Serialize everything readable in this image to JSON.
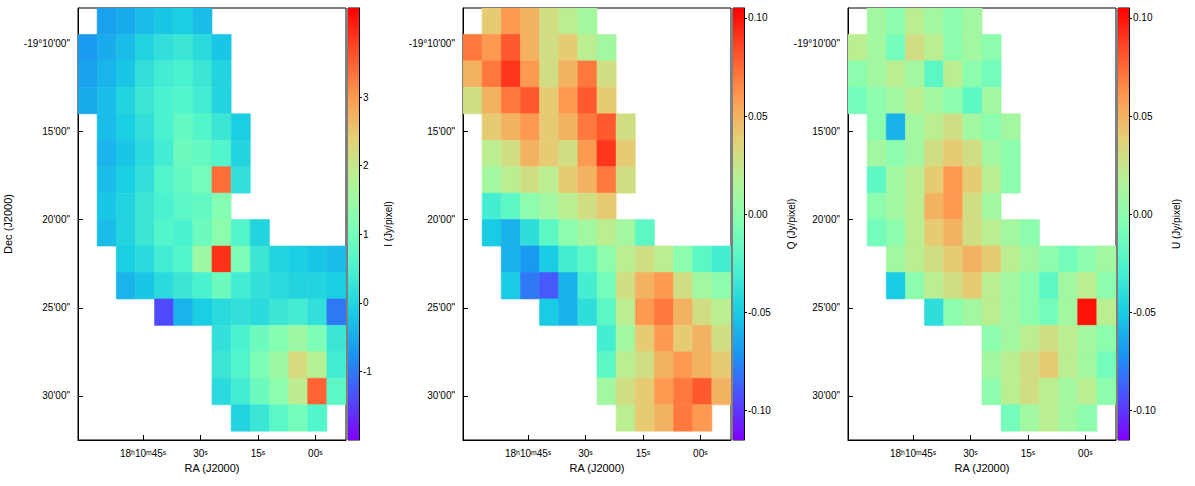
{
  "chart_data": [
    {
      "type": "heatmap",
      "x_label": "RA (J2000)",
      "y_label": "Dec (J2000)",
      "x": [
        59.5,
        54.5,
        49.5,
        44.5,
        39.5,
        34.5,
        29.5,
        24.5,
        19.5,
        14.5,
        9.5,
        4.5,
        -0.5,
        -5.5
      ],
      "y": [
        -8.75,
        -10.25,
        -11.75,
        -13.25,
        -14.75,
        -16.25,
        -17.75,
        -19.25,
        -20.75,
        -22.25,
        -23.75,
        -25.25,
        -26.75,
        -28.25,
        -29.75,
        -31.25
      ],
      "cells": [
        [
          null,
          -0.6,
          -0.5,
          -0.3,
          -0.2,
          -0.1,
          -0.3,
          null,
          null,
          null,
          null,
          null,
          null,
          null
        ],
        [
          -0.7,
          -0.5,
          -0.3,
          0,
          0.2,
          0.3,
          0.1,
          -0.2,
          null,
          null,
          null,
          null,
          null,
          null
        ],
        [
          -0.6,
          -0.4,
          -0.2,
          0.2,
          0.4,
          0.5,
          0.3,
          0,
          null,
          null,
          null,
          null,
          null,
          null
        ],
        [
          -0.5,
          -0.3,
          0,
          0.3,
          0.5,
          0.6,
          0.4,
          0,
          null,
          null,
          null,
          null,
          null,
          null
        ],
        [
          null,
          -0.3,
          -0.1,
          0.2,
          0.5,
          0.8,
          0.6,
          0.3,
          -0.1,
          null,
          null,
          null,
          null,
          null
        ],
        [
          null,
          -0.4,
          -0.2,
          0.1,
          0.4,
          0.9,
          0.8,
          0.6,
          0,
          null,
          null,
          null,
          null,
          null
        ],
        [
          null,
          -0.3,
          -0.1,
          0.2,
          0.6,
          0.8,
          1.0,
          3.4,
          0.2,
          null,
          null,
          null,
          null,
          null
        ],
        [
          null,
          -0.2,
          0,
          0.3,
          0.5,
          0.7,
          0.8,
          1.2,
          null,
          null,
          null,
          null,
          null,
          null
        ],
        [
          null,
          -0.3,
          0,
          0.3,
          0.6,
          0.5,
          0.9,
          1.3,
          0.6,
          0,
          null,
          null,
          null,
          null
        ],
        [
          null,
          null,
          -0.1,
          0.1,
          0.4,
          0.6,
          1.5,
          3.9,
          1.1,
          0.3,
          0,
          -0.1,
          -0.2,
          -0.3
        ],
        [
          null,
          null,
          -0.4,
          -0.2,
          0.1,
          0.3,
          0.5,
          0.9,
          0.4,
          0.2,
          0.1,
          0,
          0,
          -0.1
        ],
        [
          null,
          null,
          null,
          null,
          -1.4,
          -0.4,
          -0.1,
          0.1,
          0.2,
          0.1,
          0.3,
          0.4,
          0.2,
          -1.0
        ],
        [
          null,
          null,
          null,
          null,
          null,
          null,
          null,
          0.2,
          0.5,
          0.9,
          1.2,
          1.5,
          1.1,
          0.3
        ],
        [
          null,
          null,
          null,
          null,
          null,
          null,
          null,
          0.3,
          0.6,
          1.1,
          1.5,
          2.2,
          1.8,
          0.4
        ],
        [
          null,
          null,
          null,
          null,
          null,
          null,
          null,
          0.1,
          0.4,
          0.9,
          1.3,
          1.9,
          3.5,
          0.7
        ],
        [
          null,
          null,
          null,
          null,
          null,
          null,
          null,
          null,
          0,
          0.3,
          0.7,
          1.0,
          0.6,
          null
        ]
      ],
      "xlim": [
        -8,
        62
      ],
      "ylim": [
        -32.5,
        -8
      ],
      "xticks": [
        {
          "value": 45,
          "label": "18ʰ10ᵐ45ˢ"
        },
        {
          "value": 30,
          "label": "30ˢ"
        },
        {
          "value": 15,
          "label": "15ˢ"
        },
        {
          "value": 0,
          "label": "00ˢ"
        }
      ],
      "yticks": [
        {
          "value": -10,
          "label": "-19°10'00\""
        },
        {
          "value": -15,
          "label": "15'00\""
        },
        {
          "value": -20,
          "label": "20'00\""
        },
        {
          "value": -25,
          "label": "25'00\""
        },
        {
          "value": -30,
          "label": "30'00\""
        }
      ],
      "colorbar": {
        "label": "I (Jy/pixel)",
        "range": [
          -2.0,
          4.3
        ],
        "ticks": [
          -1,
          0,
          1,
          2,
          3
        ]
      }
    },
    {
      "type": "heatmap",
      "x_label": "RA (J2000)",
      "x": [
        59.5,
        54.5,
        49.5,
        44.5,
        39.5,
        34.5,
        29.5,
        24.5,
        19.5,
        14.5,
        9.5,
        4.5,
        -0.5,
        -5.5
      ],
      "y": [
        -8.75,
        -10.25,
        -11.75,
        -13.25,
        -14.75,
        -16.25,
        -17.75,
        -19.25,
        -20.75,
        -22.25,
        -23.75,
        -25.25,
        -26.75,
        -28.25,
        -29.75,
        -31.25
      ],
      "cells": [
        [
          null,
          0.04,
          0.06,
          0.05,
          0.03,
          0.02,
          0.01,
          null,
          null,
          null,
          null,
          null,
          null,
          null
        ],
        [
          0.07,
          0.06,
          0.08,
          0.05,
          0.03,
          0.04,
          0.02,
          0.01,
          null,
          null,
          null,
          null,
          null,
          null
        ],
        [
          0.05,
          0.07,
          0.09,
          0.06,
          0.03,
          0.05,
          0.07,
          0.03,
          null,
          null,
          null,
          null,
          null,
          null
        ],
        [
          0.03,
          0.05,
          0.07,
          0.08,
          0.04,
          0.06,
          0.08,
          0.04,
          null,
          null,
          null,
          null,
          null,
          null
        ],
        [
          null,
          0.04,
          0.05,
          0.06,
          0.04,
          0.05,
          0.07,
          0.08,
          0.03,
          null,
          null,
          null,
          null,
          null
        ],
        [
          null,
          0.02,
          0.03,
          0.05,
          0.04,
          0.03,
          0.06,
          0.09,
          0.04,
          null,
          null,
          null,
          null,
          null
        ],
        [
          null,
          0.01,
          0.02,
          0.03,
          0.02,
          0.04,
          0.05,
          0.07,
          0.03,
          null,
          null,
          null,
          null,
          null
        ],
        [
          null,
          -0.03,
          -0.02,
          0,
          0.01,
          0.02,
          0.03,
          0.04,
          null,
          null,
          null,
          null,
          null,
          null
        ],
        [
          null,
          -0.05,
          -0.06,
          -0.04,
          -0.02,
          0,
          0.01,
          0.02,
          0.01,
          -0.02,
          null,
          null,
          null,
          null
        ],
        [
          null,
          null,
          -0.06,
          -0.07,
          -0.05,
          -0.03,
          -0.02,
          0,
          0.02,
          0.03,
          0.02,
          0,
          -0.02,
          -0.03
        ],
        [
          null,
          null,
          -0.05,
          -0.08,
          -0.09,
          -0.06,
          -0.03,
          -0.01,
          0.03,
          0.05,
          0.06,
          0.03,
          0.01,
          0
        ],
        [
          null,
          null,
          null,
          null,
          -0.05,
          -0.06,
          -0.04,
          -0.02,
          0.02,
          0.06,
          0.07,
          0.05,
          0.03,
          0.02
        ],
        [
          null,
          null,
          null,
          null,
          null,
          null,
          null,
          -0.03,
          0.01,
          0.04,
          0.06,
          0.04,
          0.05,
          0.03
        ],
        [
          null,
          null,
          null,
          null,
          null,
          null,
          null,
          -0.02,
          0.02,
          0.03,
          0.05,
          0.06,
          0.05,
          0.04
        ],
        [
          null,
          null,
          null,
          null,
          null,
          null,
          null,
          0.01,
          0.03,
          0.04,
          0.06,
          0.07,
          0.08,
          0.05
        ],
        [
          null,
          null,
          null,
          null,
          null,
          null,
          null,
          null,
          0.02,
          0.04,
          0.05,
          0.07,
          0.06,
          null
        ]
      ],
      "xlim": [
        -8,
        62
      ],
      "ylim": [
        -32.5,
        -8
      ],
      "xticks": [
        {
          "value": 45,
          "label": "18ʰ10ᵐ45ˢ"
        },
        {
          "value": 30,
          "label": "30ˢ"
        },
        {
          "value": 15,
          "label": "15ˢ"
        },
        {
          "value": 0,
          "label": "00ˢ"
        }
      ],
      "yticks": [
        {
          "value": -10,
          "label": "-19°10'00\""
        },
        {
          "value": -15,
          "label": "15'00\""
        },
        {
          "value": -20,
          "label": "20'00\""
        },
        {
          "value": -25,
          "label": "25'00\""
        },
        {
          "value": -30,
          "label": "30'00\""
        }
      ],
      "colorbar": {
        "label": "Q (Jy/pixel)",
        "range": [
          -0.115,
          0.105
        ],
        "ticks": [
          {
            "value": -0.1,
            "label": "-0.10"
          },
          {
            "value": -0.05,
            "label": "-0.05"
          },
          {
            "value": 0,
            "label": "0.00"
          },
          {
            "value": 0.05,
            "label": "0.05"
          },
          {
            "value": 0.1,
            "label": "0.10"
          }
        ]
      }
    },
    {
      "type": "heatmap",
      "x_label": "RA (J2000)",
      "x": [
        59.5,
        54.5,
        49.5,
        44.5,
        39.5,
        34.5,
        29.5,
        24.5,
        19.5,
        14.5,
        9.5,
        4.5,
        -0.5,
        -5.5
      ],
      "y": [
        -8.75,
        -10.25,
        -11.75,
        -13.25,
        -14.75,
        -16.25,
        -17.75,
        -19.25,
        -20.75,
        -22.25,
        -23.75,
        -25.25,
        -26.75,
        -28.25,
        -29.75,
        -31.25
      ],
      "cells": [
        [
          null,
          0.01,
          0,
          0.02,
          0.01,
          0,
          0.01,
          null,
          null,
          null,
          null,
          null,
          null,
          null
        ],
        [
          0.02,
          0.01,
          -0.01,
          0.03,
          0.02,
          0,
          0.01,
          0,
          null,
          null,
          null,
          null,
          null,
          null
        ],
        [
          0,
          0.01,
          0.02,
          0.01,
          -0.02,
          0.02,
          0,
          -0.01,
          null,
          null,
          null,
          null,
          null,
          null
        ],
        [
          -0.01,
          0,
          0.01,
          0.02,
          0.01,
          0,
          -0.02,
          0.01,
          null,
          null,
          null,
          null,
          null,
          null
        ],
        [
          null,
          0,
          -0.06,
          0.01,
          0.02,
          0.03,
          0.01,
          0,
          0.01,
          null,
          null,
          null,
          null,
          null
        ],
        [
          null,
          0.01,
          0,
          0.01,
          0.03,
          0.04,
          0.03,
          0.01,
          0,
          null,
          null,
          null,
          null,
          null
        ],
        [
          null,
          -0.02,
          0.01,
          0.02,
          0.04,
          0.06,
          0.04,
          0.02,
          0,
          null,
          null,
          null,
          null,
          null
        ],
        [
          null,
          0,
          0.01,
          0.02,
          0.05,
          0.06,
          0.03,
          0.01,
          null,
          null,
          null,
          null,
          null,
          null
        ],
        [
          null,
          -0.01,
          0,
          0.02,
          0.04,
          0.05,
          0.03,
          0.02,
          0.01,
          0,
          null,
          null,
          null,
          null
        ],
        [
          null,
          null,
          0.01,
          0.02,
          0.03,
          0.04,
          0.05,
          0.04,
          0.02,
          0.01,
          0,
          -0.01,
          0,
          0.01
        ],
        [
          null,
          null,
          -0.05,
          0,
          0.02,
          0.03,
          0.04,
          0.02,
          0.01,
          0,
          -0.02,
          0.01,
          0.02,
          0
        ],
        [
          null,
          null,
          null,
          null,
          -0.04,
          0,
          0.01,
          0.02,
          0.01,
          0,
          -0.01,
          0.01,
          0.1,
          0.02
        ],
        [
          null,
          null,
          null,
          null,
          null,
          null,
          null,
          0,
          0.01,
          0.02,
          0.03,
          0.02,
          0.01,
          0
        ],
        [
          null,
          null,
          null,
          null,
          null,
          null,
          null,
          0.01,
          0.02,
          0.03,
          0.04,
          0.02,
          0.01,
          -0.01
        ],
        [
          null,
          null,
          null,
          null,
          null,
          null,
          null,
          0,
          0.02,
          0.03,
          0.02,
          0.01,
          0.02,
          0
        ],
        [
          null,
          null,
          null,
          null,
          null,
          null,
          null,
          null,
          -0.01,
          0.01,
          0.02,
          0.01,
          0,
          null
        ]
      ],
      "xlim": [
        -8,
        62
      ],
      "ylim": [
        -32.5,
        -8
      ],
      "xticks": [
        {
          "value": 45,
          "label": "18ʰ10ᵐ45ˢ"
        },
        {
          "value": 30,
          "label": "30ˢ"
        },
        {
          "value": 15,
          "label": "15ˢ"
        },
        {
          "value": 0,
          "label": "00ˢ"
        }
      ],
      "yticks": [
        {
          "value": -10,
          "label": "-19°10'00\""
        },
        {
          "value": -15,
          "label": "15'00\""
        },
        {
          "value": -20,
          "label": "20'00\""
        },
        {
          "value": -25,
          "label": "25'00\""
        },
        {
          "value": -30,
          "label": "30'00\""
        }
      ],
      "colorbar": {
        "label": "U (Jy/pixel)",
        "range": [
          -0.115,
          0.105
        ],
        "ticks": [
          {
            "value": -0.1,
            "label": "-0.10"
          },
          {
            "value": -0.05,
            "label": "-0.05"
          },
          {
            "value": 0,
            "label": "0.00"
          },
          {
            "value": 0.05,
            "label": "0.05"
          },
          {
            "value": 0.1,
            "label": "0.10"
          }
        ]
      }
    }
  ]
}
